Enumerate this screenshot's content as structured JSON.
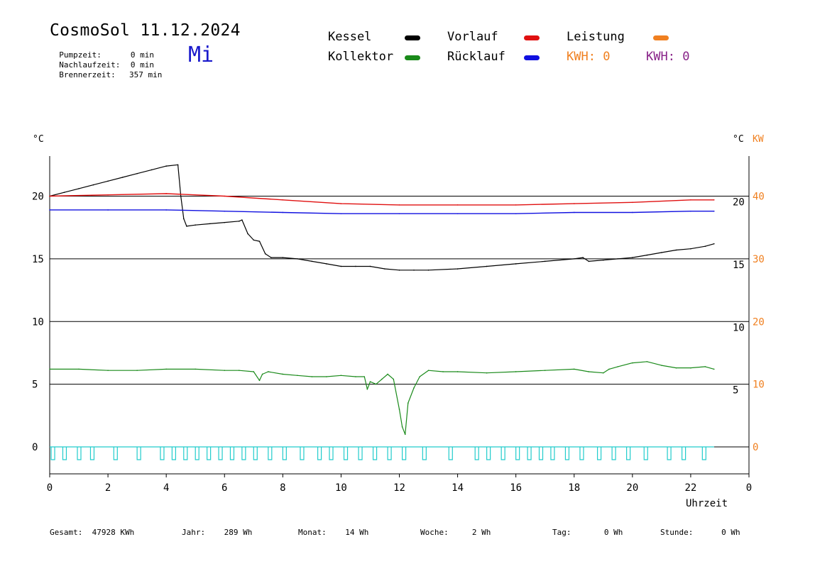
{
  "header": {
    "title": "CosmoSol 11.12.2024",
    "weekday": "Mi",
    "stats": [
      {
        "label": "Pumpzeit:",
        "value": "0 min"
      },
      {
        "label": "Nachlaufzeit:",
        "value": "0 min"
      },
      {
        "label": "Brennerzeit:",
        "value": "357 min"
      }
    ]
  },
  "legend": [
    {
      "name": "Kessel",
      "color": "#000000"
    },
    {
      "name": "Kollektor",
      "color": "#1a8a1a"
    },
    {
      "name": "Vorlauf",
      "color": "#e01010"
    },
    {
      "name": "Rücklauf",
      "color": "#1010e0"
    },
    {
      "name": "Leistung",
      "color": "#f08020"
    }
  ],
  "kwh": [
    {
      "label": "KWH:",
      "value": "0",
      "color": "#f08020"
    },
    {
      "label": "KWH:",
      "value": "0",
      "color": "#882288"
    }
  ],
  "footer": [
    {
      "label": "Gesamt:",
      "value": "47928 KWh"
    },
    {
      "label": "Jahr:",
      "value": "289 Wh"
    },
    {
      "label": "Monat:",
      "value": "14 Wh"
    },
    {
      "label": "Woche:",
      "value": "2 Wh"
    },
    {
      "label": "Tag:",
      "value": "0 Wh"
    },
    {
      "label": "Stunde:",
      "value": "0 Wh"
    }
  ],
  "chart_data": {
    "type": "line",
    "xlabel": "Uhrzeit",
    "xlim": [
      0,
      24
    ],
    "x_ticks": [
      "0",
      "2",
      "4",
      "6",
      "8",
      "10",
      "12",
      "14",
      "16",
      "18",
      "20",
      "22",
      "0"
    ],
    "left_axis": {
      "unit": "°C",
      "ticks": [
        0,
        5,
        10,
        15,
        20
      ],
      "ylim": [
        -1.8,
        23.5
      ]
    },
    "right_axis_inner": {
      "unit": "°C",
      "ticks": [
        5,
        10,
        15,
        20
      ]
    },
    "right_axis_outer": {
      "unit": "KW",
      "color": "#f08020",
      "ticks": [
        0,
        10,
        20,
        30,
        40
      ]
    },
    "grid_lines_y": [
      5,
      10,
      15,
      20
    ],
    "series": [
      {
        "name": "Kessel",
        "color": "#000000",
        "x": [
          0,
          0.5,
          1,
          1.5,
          2,
          2.5,
          3,
          3.5,
          4,
          4.4,
          4.5,
          4.6,
          4.7,
          5,
          5.5,
          6,
          6.5,
          6.6,
          6.8,
          7,
          7.2,
          7.4,
          7.6,
          8,
          8.5,
          9,
          9.5,
          10,
          10.5,
          11,
          11.5,
          12,
          12.5,
          13,
          14,
          15,
          16,
          17,
          18,
          18.3,
          18.5,
          19,
          19.5,
          20,
          20.5,
          21,
          21.5,
          22,
          22.5,
          22.8
        ],
        "y": [
          20.0,
          20.3,
          20.6,
          20.9,
          21.2,
          21.5,
          21.8,
          22.1,
          22.4,
          22.5,
          20.0,
          18.2,
          17.6,
          17.7,
          17.8,
          17.9,
          18.0,
          18.1,
          17.0,
          16.5,
          16.4,
          15.4,
          15.1,
          15.1,
          15.0,
          14.8,
          14.6,
          14.4,
          14.4,
          14.4,
          14.2,
          14.1,
          14.1,
          14.1,
          14.2,
          14.4,
          14.6,
          14.8,
          15.0,
          15.1,
          14.8,
          14.9,
          15.0,
          15.1,
          15.3,
          15.5,
          15.7,
          15.8,
          16.0,
          16.2
        ]
      },
      {
        "name": "Kollektor",
        "color": "#1a8a1a",
        "x": [
          0,
          1,
          2,
          3,
          4,
          5,
          6,
          6.5,
          7,
          7.2,
          7.3,
          7.5,
          8,
          8.5,
          9,
          9.5,
          10,
          10.5,
          10.8,
          10.9,
          11,
          11.2,
          11.4,
          11.6,
          11.8,
          12.0,
          12.1,
          12.2,
          12.3,
          12.5,
          12.7,
          13,
          13.5,
          14,
          15,
          16,
          17,
          18,
          18.5,
          19,
          19.2,
          19.5,
          20,
          20.5,
          21,
          21.5,
          22,
          22.5,
          22.8
        ],
        "y": [
          6.2,
          6.2,
          6.1,
          6.1,
          6.2,
          6.2,
          6.1,
          6.1,
          6.0,
          5.3,
          5.8,
          6.0,
          5.8,
          5.7,
          5.6,
          5.6,
          5.7,
          5.6,
          5.6,
          4.6,
          5.2,
          5.0,
          5.4,
          5.8,
          5.4,
          3.0,
          1.6,
          1.0,
          3.5,
          4.7,
          5.6,
          6.1,
          6.0,
          6.0,
          5.9,
          6.0,
          6.1,
          6.2,
          6.0,
          5.9,
          6.2,
          6.4,
          6.7,
          6.8,
          6.5,
          6.3,
          6.3,
          6.4,
          6.2
        ]
      },
      {
        "name": "Vorlauf",
        "color": "#e01010",
        "x": [
          0,
          2,
          4,
          6,
          8,
          10,
          12,
          14,
          16,
          18,
          20,
          22,
          22.8
        ],
        "y": [
          20.0,
          20.1,
          20.2,
          20.0,
          19.7,
          19.4,
          19.3,
          19.3,
          19.3,
          19.4,
          19.5,
          19.7,
          19.7
        ]
      },
      {
        "name": "Rücklauf",
        "color": "#1010e0",
        "x": [
          0,
          2,
          4,
          6,
          8,
          10,
          12,
          14,
          16,
          18,
          20,
          22,
          22.8
        ],
        "y": [
          18.9,
          18.9,
          18.9,
          18.8,
          18.7,
          18.6,
          18.6,
          18.6,
          18.6,
          18.7,
          18.7,
          18.8,
          18.8
        ]
      }
    ],
    "pump_pulses": {
      "color": "#22cccc",
      "x": [
        0.05,
        0.45,
        0.95,
        1.4,
        2.2,
        3.0,
        3.8,
        4.2,
        4.6,
        5.0,
        5.4,
        5.8,
        6.2,
        6.6,
        7.0,
        7.5,
        8.0,
        8.6,
        9.2,
        9.6,
        10.1,
        10.6,
        11.1,
        11.6,
        12.1,
        12.8,
        13.7,
        14.6,
        15.0,
        15.5,
        16.0,
        16.4,
        16.8,
        17.2,
        17.7,
        18.2,
        18.8,
        19.3,
        19.8,
        20.4,
        21.2,
        21.7,
        22.4
      ]
    }
  }
}
